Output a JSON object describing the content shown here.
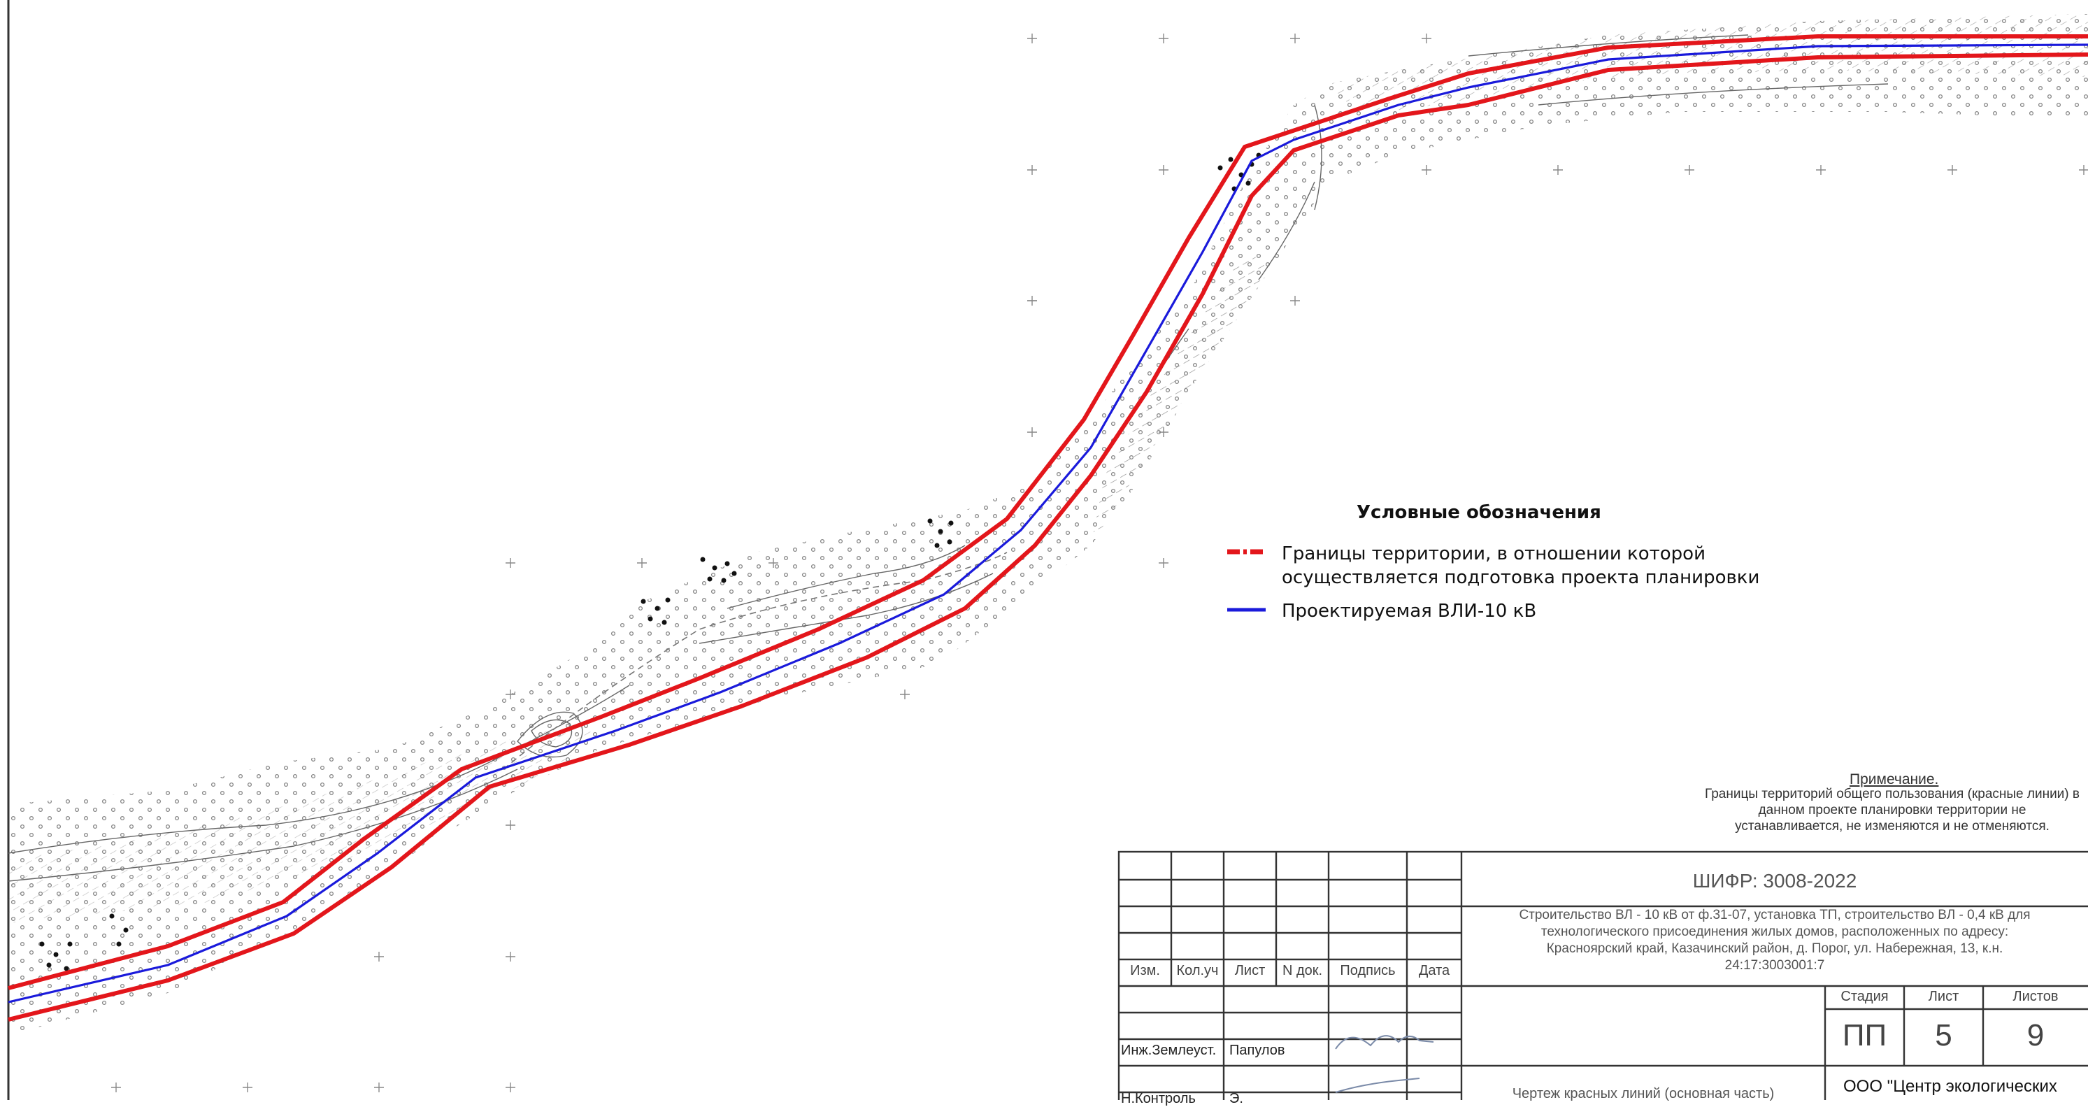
{
  "legend": {
    "title": "Условные обозначения",
    "items": [
      {
        "line1": "Границы территории, в отношении которой",
        "line2": "осуществляется подготовка проекта планировки",
        "color": "#e3161b",
        "style": "dash-dot"
      },
      {
        "line1": "Проектируемая ВЛИ-10  кВ",
        "color": "#1a1adb",
        "style": "solid"
      }
    ]
  },
  "note": {
    "title": "Примечание.",
    "text": "Границы территорий общего пользования (красные линии) в данном проекте планировки территории не устанавливается, не изменяются и не отменяются."
  },
  "title_block": {
    "cipher": "ШИФР: 3008-2022",
    "project_line1": "Строительство ВЛ - 10 кВ от ф.31-07, установка ТП, строительство ВЛ - 0,4 кВ для",
    "project_line2": "технологического присоединения жилых домов, расположенных по адресу:",
    "project_line3": "Красноярский край, Казачинский район, д. Порог, ул. Набережная, 13, к.н.",
    "project_line4": "24:17:3003001:7",
    "headers": [
      "Изм.",
      "Кол.уч",
      "Лист",
      "N док.",
      "Подпись",
      "Дата"
    ],
    "stage_label": "Стадия",
    "sheet_label": "Лист",
    "sheets_label": "Листов",
    "stage": "ПП",
    "sheet": "5",
    "sheets": "9",
    "role1": "Инж.Землеуст.",
    "person1": "Папулов",
    "role2": "Н.Контроль",
    "person2": "Э.",
    "drawing_name": "Чертеж красных линий (основная часть)",
    "organization": "ООО \"Центр экологических"
  },
  "colors": {
    "boundary": "#e3161b",
    "line": "#1a1adb",
    "grid": "#888888",
    "survey": "#555555"
  }
}
